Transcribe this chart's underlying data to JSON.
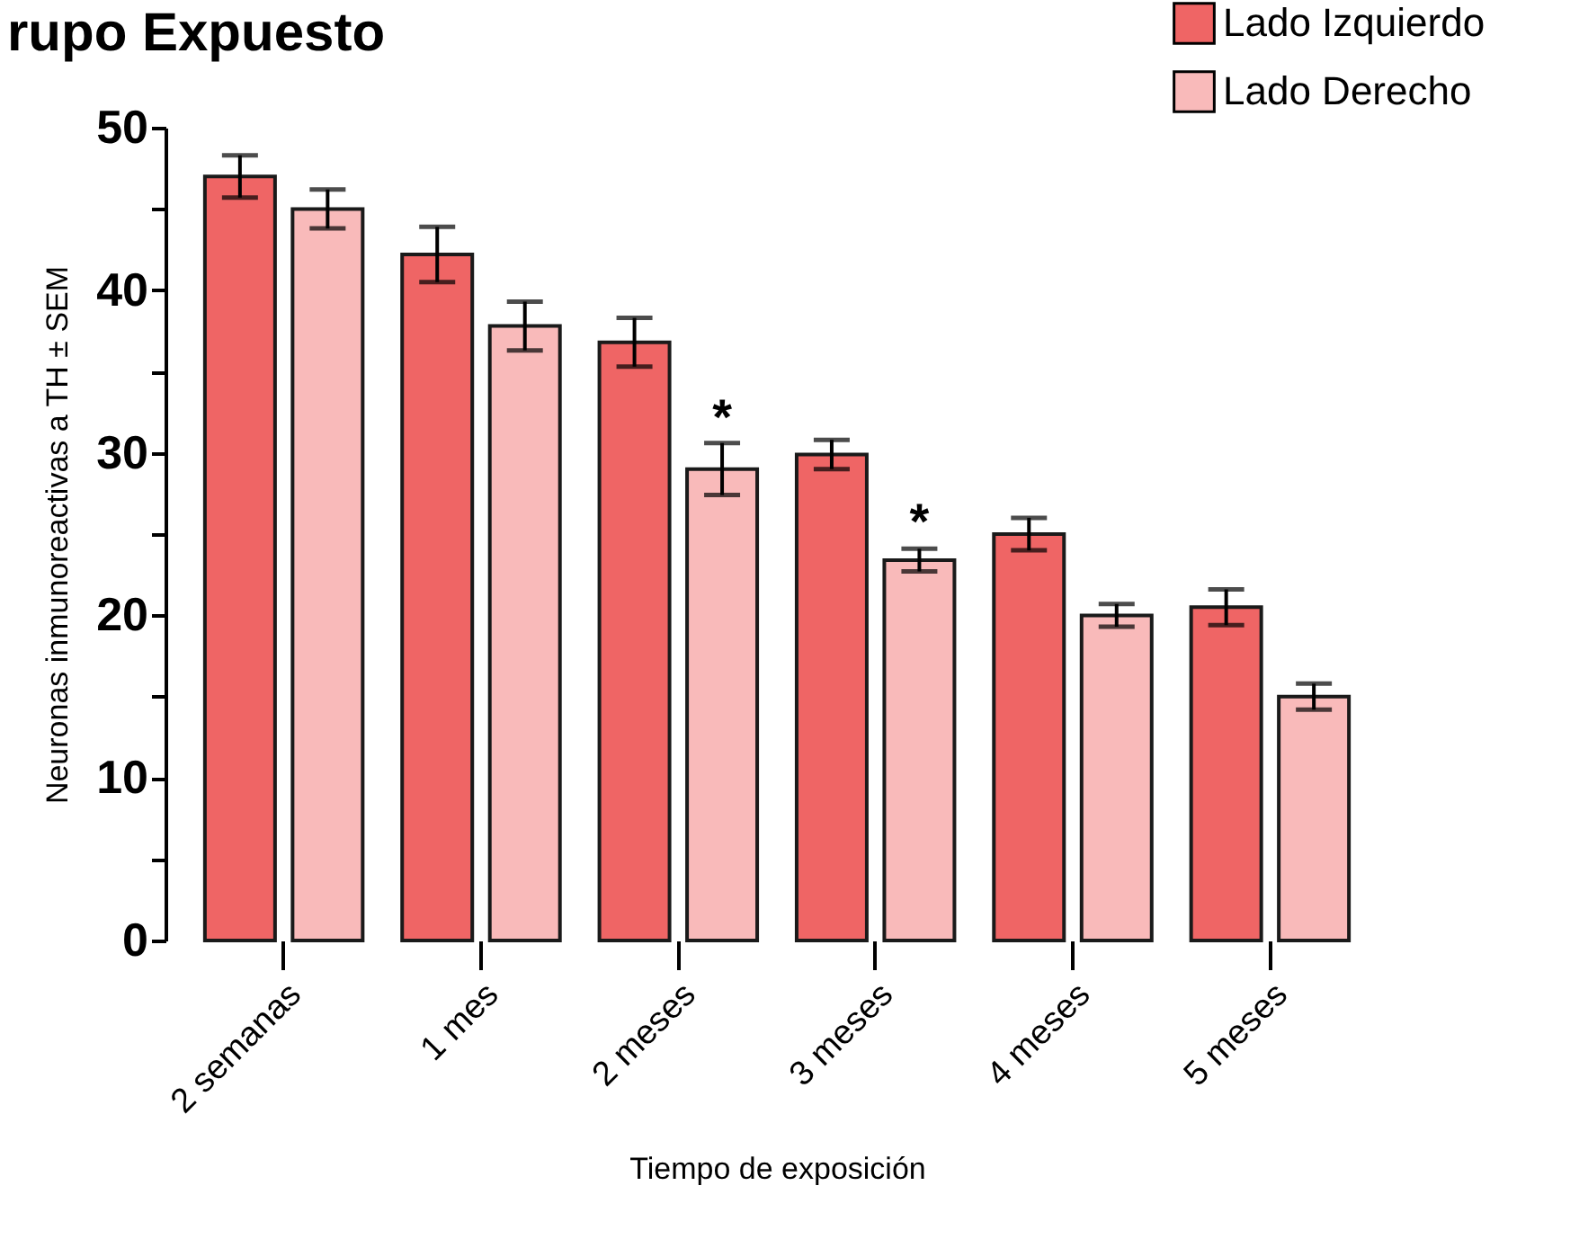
{
  "chart_data": {
    "type": "bar",
    "title": "rupo Expuesto",
    "xlabel": "Tiempo de exposición",
    "ylabel": "Neuronas inmunoreactivas a TH ± SEM",
    "categories": [
      "2 semanas",
      "1 mes",
      "2 meses",
      "3 meses",
      "4 meses",
      "5 meses"
    ],
    "series": [
      {
        "name": "Lado Izquierdo",
        "color": "#ef6565",
        "values": [
          47,
          42.2,
          36.8,
          29.9,
          25,
          20.5
        ],
        "errors": [
          1.3,
          1.7,
          1.5,
          0.9,
          1,
          1.1
        ]
      },
      {
        "name": "Lado Derecho",
        "color": "#f9baba",
        "values": [
          45,
          37.8,
          29,
          23.4,
          20,
          15
        ],
        "errors": [
          1.2,
          1.5,
          1.6,
          0.7,
          0.7,
          0.8
        ]
      }
    ],
    "ylim": [
      0,
      50
    ],
    "yticks": [
      0,
      {
        "value": 5,
        "label": null
      },
      10,
      {
        "value": 15,
        "label": null
      },
      20,
      {
        "value": 25,
        "label": null
      },
      30,
      {
        "value": 35,
        "label": null
      },
      40,
      {
        "value": 45,
        "label": null
      },
      50
    ],
    "annotations": [
      {
        "text": "*",
        "x": "2 meses",
        "y": 32
      },
      {
        "text": "*",
        "x": "3 meses",
        "y": 25.6
      }
    ],
    "legend": "top right",
    "grid": false
  }
}
